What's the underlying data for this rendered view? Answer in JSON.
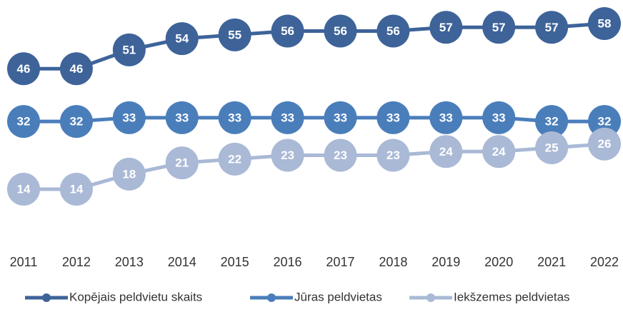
{
  "chart_data": {
    "type": "line",
    "categories": [
      "2011",
      "2012",
      "2013",
      "2014",
      "2015",
      "2016",
      "2017",
      "2018",
      "2019",
      "2020",
      "2021",
      "2022"
    ],
    "series": [
      {
        "name": "Kopējais peldvietu skaits",
        "color": "#3d6399",
        "values": [
          46,
          46,
          51,
          54,
          55,
          56,
          56,
          56,
          57,
          57,
          57,
          58
        ]
      },
      {
        "name": "Jūras peldvietas",
        "color": "#4a7ebb",
        "values": [
          32,
          32,
          33,
          33,
          33,
          33,
          33,
          33,
          33,
          33,
          32,
          32
        ]
      },
      {
        "name": "Iekšzemes peldvietas",
        "color": "#a9b9d6",
        "values": [
          14,
          14,
          18,
          21,
          22,
          23,
          23,
          23,
          24,
          24,
          25,
          26
        ]
      }
    ],
    "legend": "bottom"
  }
}
